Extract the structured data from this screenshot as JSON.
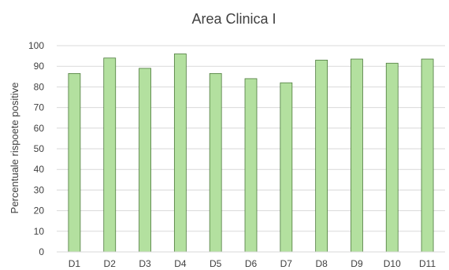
{
  "chart_data": {
    "type": "bar",
    "title": "Area Clinica I",
    "xlabel": "",
    "ylabel": "Percentuale rispoete positive",
    "categories": [
      "D1",
      "D2",
      "D3",
      "D4",
      "D5",
      "D6",
      "D7",
      "D8",
      "D9",
      "D10",
      "D11"
    ],
    "values": [
      86.5,
      94,
      89,
      96,
      86.5,
      84,
      82,
      93,
      93.5,
      91.5,
      93.5
    ],
    "ylim": [
      0,
      100
    ],
    "yticks": [
      "0",
      "10",
      "20",
      "30",
      "40",
      "50",
      "60",
      "70",
      "80",
      "90",
      "100"
    ],
    "grid": true,
    "legend": "none",
    "colors": {
      "bar_fill": "#b3e09f",
      "bar_stroke": "#4d7a3c",
      "grid": "#d9d9d9",
      "text": "#404040"
    }
  }
}
